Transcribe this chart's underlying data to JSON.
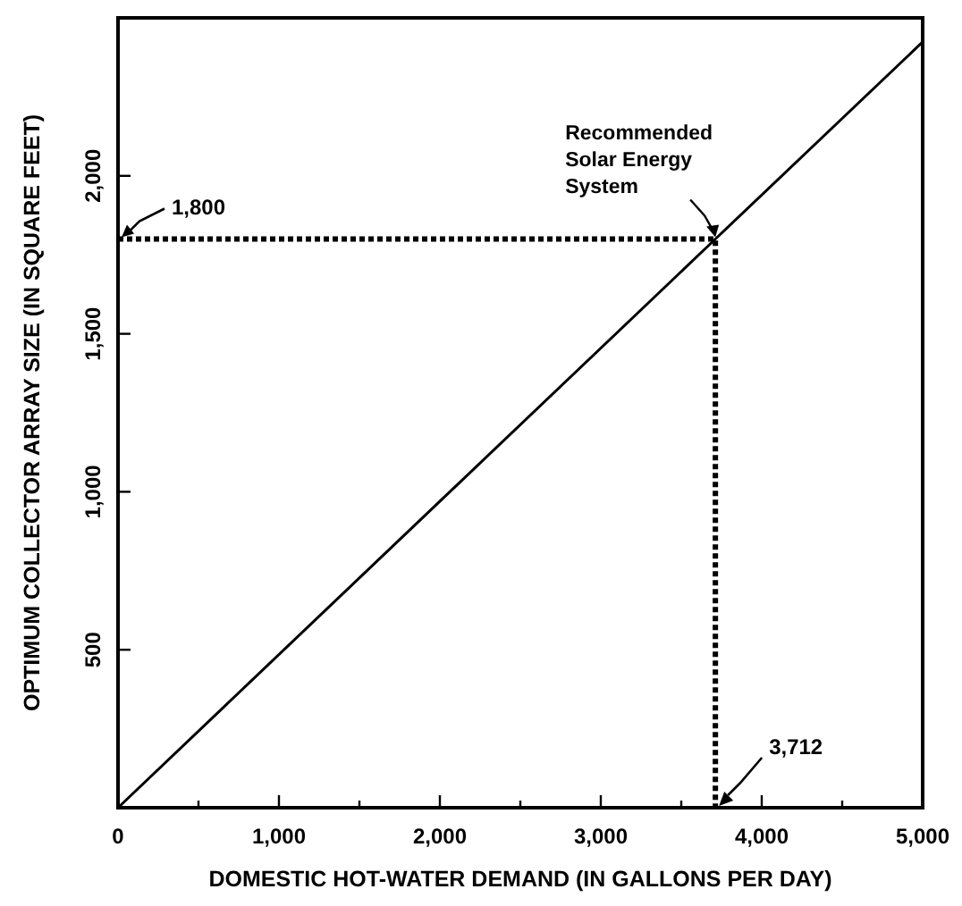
{
  "chart_data": {
    "type": "line",
    "xlabel": "DOMESTIC HOT-WATER DEMAND (IN GALLONS PER DAY)",
    "ylabel": "OPTIMUM COLLECTOR ARRAY SIZE (IN SQUARE FEET)",
    "series": [
      {
        "x": [
          0,
          3712,
          5000
        ],
        "values": [
          0,
          1800,
          2424
        ],
        "color": "#000000",
        "line_style": "solid"
      },
      {
        "x": [
          0,
          3712,
          3712
        ],
        "values": [
          1800,
          1800,
          0
        ],
        "color": "#000000",
        "line_style": "dotted"
      }
    ],
    "xlim": [
      0,
      5000
    ],
    "ylim": [
      0,
      2500
    ],
    "xticks": [
      0,
      {
        "value": 500,
        "label": null
      },
      {
        "value": 1000,
        "label": "1,000"
      },
      {
        "value": 1500,
        "label": null
      },
      {
        "value": 2000,
        "label": "2,000"
      },
      {
        "value": 2500,
        "label": null
      },
      {
        "value": 3000,
        "label": "3,000"
      },
      {
        "value": 3500,
        "label": null
      },
      {
        "value": 4000,
        "label": "4,000"
      },
      {
        "value": 4500,
        "label": null
      },
      {
        "value": 5000,
        "label": "5,000"
      }
    ],
    "yticks": [
      {
        "value": 500,
        "label": "500"
      },
      {
        "value": 1000,
        "label": "1,000"
      },
      {
        "value": 1500,
        "label": "1,500"
      },
      {
        "value": 2000,
        "label": "2,000"
      }
    ],
    "grid": false,
    "marker": "none",
    "annotations": [
      "1,800",
      "3,712",
      "Recommended\nSolar Energy\nSystem"
    ]
  }
}
